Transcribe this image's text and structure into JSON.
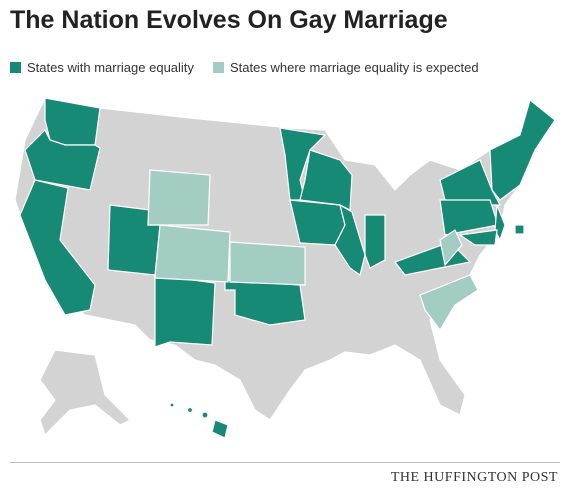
{
  "header": {
    "title": "The Nation Evolves On Gay Marriage"
  },
  "legend": [
    {
      "label": "States with marriage equality",
      "color": "#178a76"
    },
    {
      "label": "States where marriage equality is expected",
      "color": "#a3cdc3"
    }
  ],
  "footer": {
    "source": "THE HUFFINGTON POST"
  }
}
